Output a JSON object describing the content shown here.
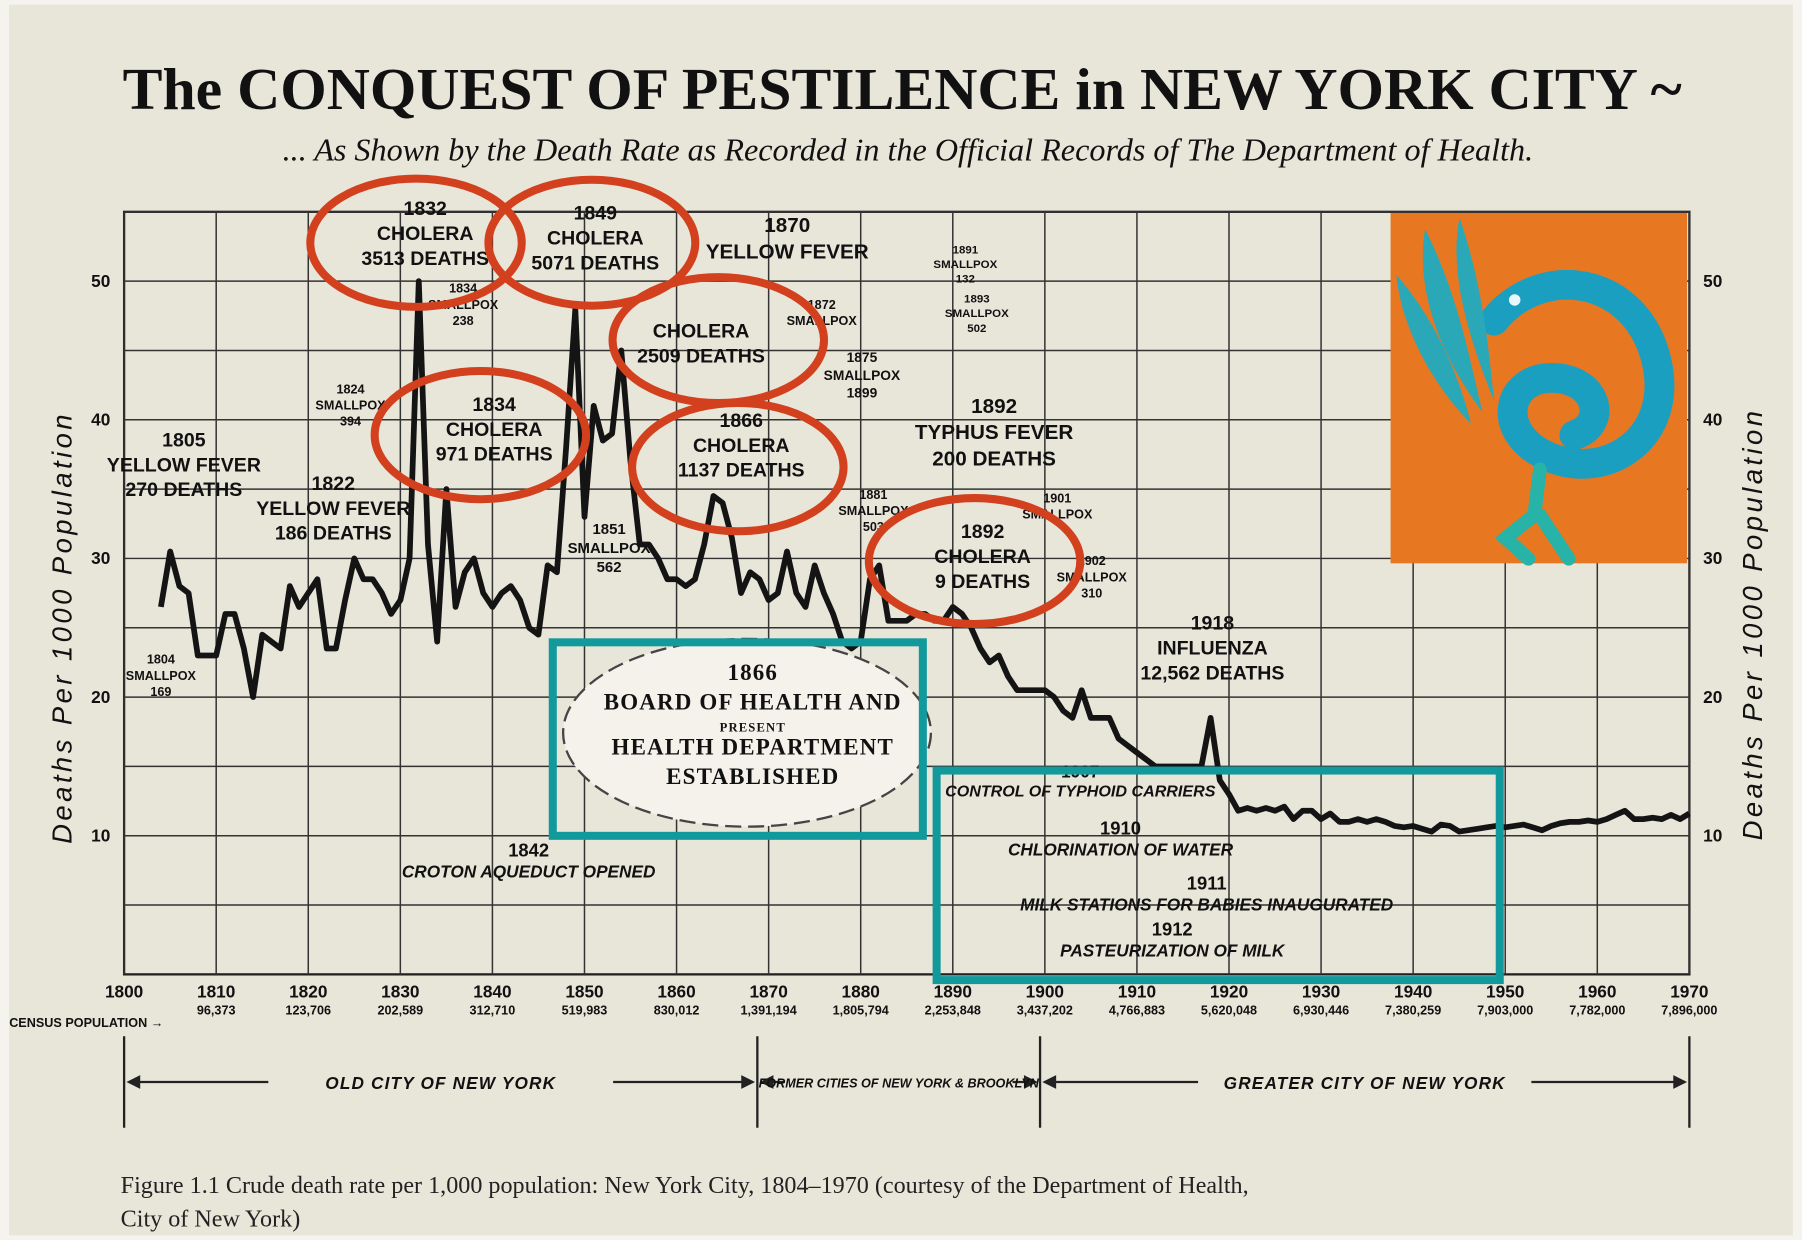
{
  "chart_data": {
    "type": "line",
    "title": "The CONQUEST OF PESTILENCE in NEW YORK CITY ~",
    "subtitle": "... As Shown by the Death Rate as Recorded in the Official Records of The Department of Health.",
    "y_label": "Deaths Per 1000 Population",
    "caption": [
      "Figure 1.1 Crude death rate per 1,000 population: New York City, 1804–1970 (courtesy of the Department of Health,",
      "City of New York)"
    ],
    "color": "#141414",
    "grid": true,
    "xlim": [
      1800,
      1970
    ],
    "xticks": [
      1800,
      1810,
      1820,
      1830,
      1840,
      1850,
      1860,
      1870,
      1880,
      1890,
      1900,
      1910,
      1920,
      1930,
      1940,
      1950,
      1960,
      1970
    ],
    "ylim": [
      0,
      55
    ],
    "yticks": [
      10,
      20,
      30,
      40,
      50
    ],
    "y_minor_ticks": [
      5,
      15,
      25,
      35,
      45,
      55
    ],
    "x": [
      1804,
      1805,
      1806,
      1807,
      1808,
      1809,
      1810,
      1811,
      1812,
      1813,
      1814,
      1815,
      1816,
      1817,
      1818,
      1819,
      1820,
      1821,
      1822,
      1823,
      1824,
      1825,
      1826,
      1827,
      1828,
      1829,
      1830,
      1831,
      1832,
      1833,
      1834,
      1835,
      1836,
      1837,
      1838,
      1839,
      1840,
      1841,
      1842,
      1843,
      1844,
      1845,
      1846,
      1847,
      1848,
      1849,
      1850,
      1851,
      1852,
      1853,
      1854,
      1855,
      1856,
      1857,
      1858,
      1859,
      1860,
      1861,
      1862,
      1863,
      1864,
      1865,
      1866,
      1867,
      1868,
      1869,
      1870,
      1871,
      1872,
      1873,
      1874,
      1875,
      1876,
      1877,
      1878,
      1879,
      1880,
      1881,
      1882,
      1883,
      1884,
      1885,
      1886,
      1887,
      1888,
      1889,
      1890,
      1891,
      1892,
      1893,
      1894,
      1895,
      1896,
      1897,
      1898,
      1899,
      1900,
      1901,
      1902,
      1903,
      1904,
      1905,
      1906,
      1907,
      1908,
      1909,
      1910,
      1911,
      1912,
      1913,
      1914,
      1915,
      1916,
      1917,
      1918,
      1919,
      1920,
      1921,
      1922,
      1923,
      1924,
      1925,
      1926,
      1927,
      1928,
      1929,
      1930,
      1931,
      1932,
      1933,
      1934,
      1935,
      1936,
      1937,
      1938,
      1939,
      1940,
      1941,
      1942,
      1943,
      1944,
      1945,
      1946,
      1947,
      1948,
      1949,
      1950,
      1951,
      1952,
      1953,
      1954,
      1955,
      1956,
      1957,
      1958,
      1959,
      1960,
      1961,
      1962,
      1963,
      1964,
      1965,
      1966,
      1967,
      1968,
      1969,
      1970
    ],
    "values": [
      26.5,
      30.5,
      28,
      27.5,
      23,
      23,
      23,
      26,
      26,
      23.5,
      20,
      24.5,
      24,
      23.5,
      28,
      26.5,
      27.5,
      28.5,
      23.5,
      23.5,
      27,
      30,
      28.5,
      28.5,
      27.5,
      26,
      27,
      30,
      50,
      31,
      24,
      35,
      26.5,
      29,
      30,
      27.5,
      26.5,
      27.5,
      28,
      27,
      25,
      24.5,
      29.5,
      29,
      38,
      48,
      33,
      41,
      38.5,
      39,
      45,
      37,
      31,
      31,
      30,
      28.5,
      28.5,
      28,
      28.5,
      31,
      34.5,
      34,
      31.5,
      27.5,
      29,
      28.5,
      27,
      27.5,
      30.5,
      27.5,
      26.5,
      29.5,
      27.5,
      26,
      24,
      23.5,
      24,
      28.5,
      29.5,
      25.5,
      25.5,
      25.5,
      26,
      26,
      25.5,
      25.5,
      26.5,
      26,
      25,
      23.5,
      22.5,
      23,
      21.5,
      20.5,
      20.5,
      20.5,
      20.5,
      20,
      19,
      18.5,
      20.5,
      18.5,
      18.5,
      18.5,
      17,
      16.5,
      16,
      15.5,
      15,
      15,
      15,
      15,
      15,
      15,
      18.5,
      14,
      13,
      11.8,
      12,
      11.8,
      12,
      11.8,
      12.1,
      11.2,
      11.8,
      11.8,
      11.2,
      11.6,
      11,
      11,
      11.2,
      11,
      11.2,
      11,
      10.7,
      10.6,
      10.7,
      10.5,
      10.3,
      10.8,
      10.7,
      10.3,
      10.4,
      10.5,
      10.6,
      10.7,
      10.6,
      10.7,
      10.8,
      10.6,
      10.4,
      10.7,
      10.9,
      11,
      11,
      11.1,
      11,
      11.2,
      11.5,
      11.8,
      11.2,
      11.2,
      11.3,
      11.2,
      11.5,
      11.2,
      11.6
    ],
    "census": {
      "label": "CENSUS POPULATION →",
      "values": [
        "96,373",
        "123,706",
        "202,589",
        "312,710",
        "519,983",
        "830,012",
        "1,391,194",
        "1,805,794",
        "2,253,848",
        "3,437,202",
        "4,766,883",
        "5,620,048",
        "6,930,446",
        "7,380,259",
        "7,903,000",
        "7,782,000",
        "7,896,000"
      ]
    },
    "eras": [
      "OLD CITY OF NEW YORK",
      "FORMER CITIES OF NEW YORK & BROOKLYN",
      "GREATER CITY OF NEW YORK"
    ],
    "annotations": [
      {
        "lines": [
          "1805",
          "YELLOW FEVER",
          "270 DEATHS"
        ]
      },
      {
        "lines": [
          "1804",
          "SMALLPOX",
          "169"
        ]
      },
      {
        "lines": [
          "1822",
          "YELLOW FEVER",
          "186 DEATHS"
        ]
      },
      {
        "lines": [
          "1824",
          "SMALLPOX",
          "394"
        ]
      },
      {
        "lines": [
          "1832",
          "CHOLERA",
          "3513 DEATHS"
        ]
      },
      {
        "lines": [
          "1834",
          "SMALLPOX",
          "238"
        ]
      },
      {
        "lines": [
          "1834",
          "CHOLERA",
          "971 DEATHS"
        ]
      },
      {
        "lines": [
          "1849",
          "CHOLERA",
          "5071 DEATHS"
        ]
      },
      {
        "lines": [
          "1870",
          "YELLOW FEVER"
        ]
      },
      {
        "lines": [
          "1872",
          "SMALLPOX"
        ]
      },
      {
        "lines": [
          "CHOLERA",
          "2509 DEATHS"
        ]
      },
      {
        "lines": [
          "1866",
          "CHOLERA",
          "1137 DEATHS"
        ]
      },
      {
        "lines": [
          "1851",
          "SMALLPOX",
          "562"
        ]
      },
      {
        "lines": [
          "1875",
          "SMALLPOX",
          "1899"
        ]
      },
      {
        "lines": [
          "1881",
          "SMALLPOX",
          "503"
        ]
      },
      {
        "lines": [
          "1891",
          "SMALLPOX",
          "132"
        ]
      },
      {
        "lines": [
          "1893",
          "SMALLPOX",
          "502"
        ]
      },
      {
        "lines": [
          "1892",
          "TYPHUS FEVER",
          "200 DEATHS"
        ]
      },
      {
        "lines": [
          "1892",
          "CHOLERA",
          "9 DEATHS"
        ]
      },
      {
        "lines": [
          "1901",
          "SMALLPOX"
        ]
      },
      {
        "lines": [
          "1902",
          "SMALLPOX",
          "310"
        ]
      },
      {
        "lines": [
          "1918",
          "INFLUENZA",
          "12,562 DEATHS"
        ]
      },
      {
        "lines": [
          "1866",
          "BOARD OF HEALTH AND",
          "PRESENT",
          "HEALTH DEPARTMENT",
          "ESTABLISHED"
        ]
      },
      {
        "lines": [
          "1842",
          "CROTON AQUEDUCT OPENED"
        ]
      },
      {
        "lines": [
          "1907",
          "CONTROL OF TYPHOID CARRIERS"
        ]
      },
      {
        "lines": [
          "1910",
          "CHLORINATION OF WATER"
        ]
      },
      {
        "lines": [
          "1911",
          "MILK STATIONS FOR BABIES INAUGURATED"
        ]
      },
      {
        "lines": [
          "1912",
          "PASTEURIZATION OF MILK"
        ]
      }
    ]
  }
}
